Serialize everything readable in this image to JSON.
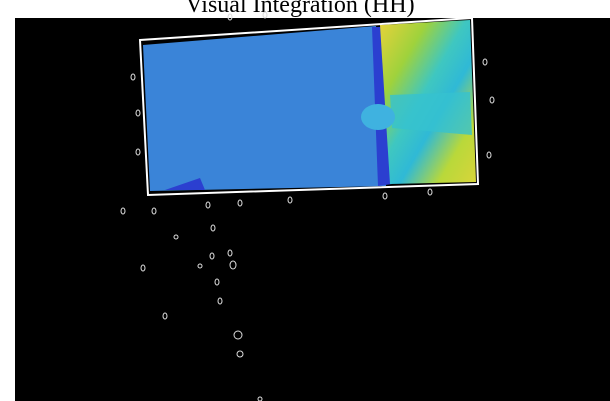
{
  "header": {
    "title": "Visual Integration (HH)"
  }
}
